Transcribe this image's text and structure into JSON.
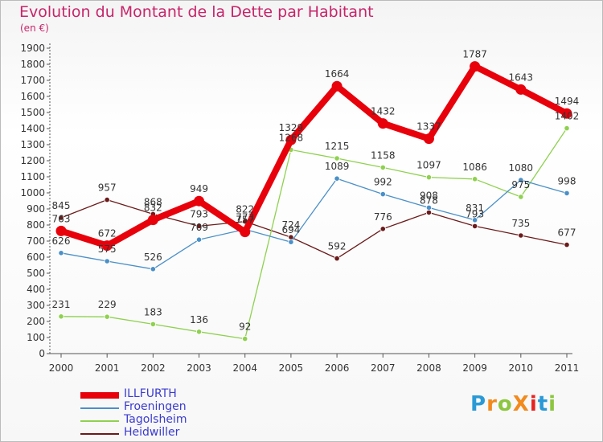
{
  "title": "Evolution du Montant de la Dette par Habitant",
  "subtitle": "(en €)",
  "logo_text": "ProXiti",
  "chart_data": {
    "type": "line",
    "title": "Evolution du Montant de la Dette par Habitant",
    "subtitle": "(en €)",
    "x": [
      "2000",
      "2001",
      "2002",
      "2003",
      "2004",
      "2005",
      "2006",
      "2007",
      "2008",
      "2009",
      "2010",
      "2011"
    ],
    "ylim": [
      0,
      1900
    ],
    "yticks": [
      0,
      100,
      200,
      300,
      400,
      500,
      600,
      700,
      800,
      900,
      1000,
      1100,
      1200,
      1300,
      1400,
      1500,
      1600,
      1700,
      1800,
      1900
    ],
    "grid": false,
    "legend_position": "bottom-left",
    "series": [
      {
        "name": "Heidwiller",
        "color": "#6b1a1a",
        "values": [
          845,
          957,
          868,
          793,
          822,
          724,
          592,
          776,
          878,
          793,
          735,
          677
        ],
        "labels": [
          "845",
          "957",
          "868",
          "793",
          "822",
          "724",
          "592",
          "776",
          "878",
          "793",
          "735",
          "677"
        ]
      },
      {
        "name": "Tagolsheim",
        "color": "#8fd14f",
        "values": [
          231,
          229,
          183,
          136,
          92,
          1268,
          1215,
          1158,
          1097,
          1086,
          975,
          1402
        ],
        "labels": [
          "231",
          "229",
          "183",
          "136",
          "92",
          "1268",
          "1215",
          "1158",
          "1097",
          "1086",
          "975",
          "1402"
        ]
      },
      {
        "name": "Froeningen",
        "color": "#4a90c8",
        "values": [
          626,
          575,
          526,
          709,
          773,
          694,
          1089,
          992,
          908,
          831,
          1080,
          998
        ],
        "labels": [
          "626",
          "575",
          "526",
          "709",
          "773",
          "694",
          "1089",
          "992",
          "908",
          "831",
          "1080",
          "998"
        ]
      },
      {
        "name": "ILLFURTH",
        "color": "#e8000b",
        "values": [
          763,
          672,
          832,
          949,
          757,
          1329,
          1664,
          1432,
          1337,
          1787,
          1643,
          1494
        ],
        "labels": [
          "763",
          "672",
          "832",
          "949",
          "757",
          "1329",
          "1664",
          "1432",
          "1337",
          "1787",
          "1643",
          "1494"
        ]
      }
    ]
  },
  "legend": [
    {
      "name": "ILLFURTH",
      "color": "#e8000b"
    },
    {
      "name": "Froeningen",
      "color": "#4a90c8"
    },
    {
      "name": "Tagolsheim",
      "color": "#8fd14f"
    },
    {
      "name": "Heidwiller",
      "color": "#6b1a1a"
    }
  ],
  "logo_colors": [
    "#2a9ad6",
    "#f28a1c",
    "#8cc63f",
    "#f28a1c",
    "#e8231f",
    "#2a9ad6",
    "#8cc63f"
  ]
}
